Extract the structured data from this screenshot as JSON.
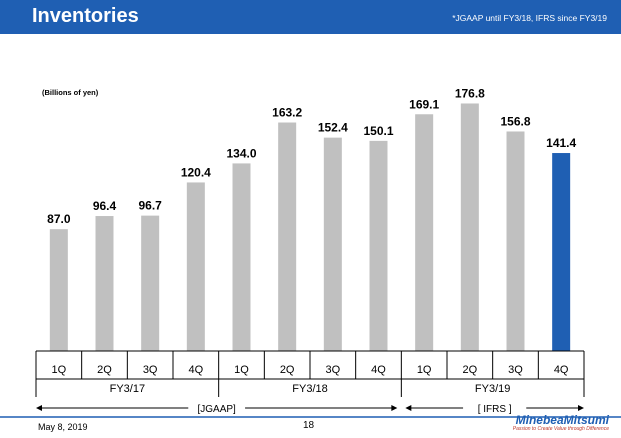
{
  "header": {
    "title": "Inventories",
    "note": "*JGAAP until FY3/18, IFRS since FY3/19"
  },
  "unit_label": "(Billions of yen)",
  "chart_data": {
    "type": "bar",
    "title": "",
    "xlabel": "",
    "ylabel": "",
    "ylim": [
      0,
      200
    ],
    "categories": [
      "1Q",
      "2Q",
      "3Q",
      "4Q",
      "1Q",
      "2Q",
      "3Q",
      "4Q",
      "1Q",
      "2Q",
      "3Q",
      "4Q"
    ],
    "values": [
      87.0,
      96.4,
      96.7,
      120.4,
      134.0,
      163.2,
      152.4,
      150.1,
      169.1,
      176.8,
      156.8,
      141.4
    ],
    "value_labels": [
      "87.0",
      "96.4",
      "96.7",
      "120.4",
      "134.0",
      "163.2",
      "152.4",
      "150.1",
      "169.1",
      "176.8",
      "156.8",
      "141.4"
    ],
    "highlight_index": 11,
    "colors": {
      "bar": "#c0c0c0",
      "highlight": "#1f5fb3"
    },
    "groups": [
      {
        "label": "FY3/17",
        "start": 0,
        "end": 3
      },
      {
        "label": "FY3/18",
        "start": 4,
        "end": 7
      },
      {
        "label": "FY3/19",
        "start": 8,
        "end": 11
      }
    ],
    "standards": [
      {
        "label": "[JGAAP]",
        "start": 0,
        "end": 7
      },
      {
        "label": "[ IFRS ]",
        "start": 8,
        "end": 11
      }
    ],
    "grid": false
  },
  "footer": {
    "date": "May 8, 2019",
    "page": "18",
    "company": "MinebeaMitsumi",
    "tagline": "Passion to Create Value through Difference"
  }
}
